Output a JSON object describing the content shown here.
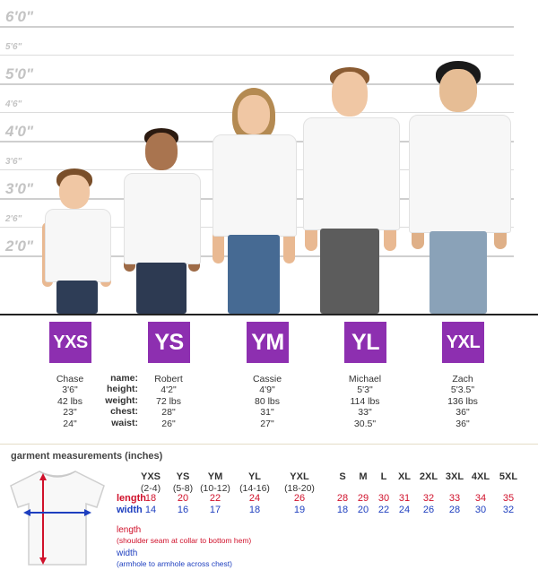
{
  "height_labels": [
    "6'0\"",
    "5'6\"",
    "5'0\"",
    "4'6\"",
    "4'0\"",
    "3'6\"",
    "3'0\"",
    "2'6\"",
    "2'0\""
  ],
  "stat_labels": [
    "name:",
    "height:",
    "weight:",
    "chest:",
    "waist:"
  ],
  "kids": [
    {
      "size": "YXS",
      "name": "Chase",
      "height": "3'6\"",
      "weight": "42 lbs",
      "chest": "23\"",
      "waist": "24\""
    },
    {
      "size": "YS",
      "name": "Robert",
      "height": "4'2\"",
      "weight": "72 lbs",
      "chest": "28\"",
      "waist": "26\""
    },
    {
      "size": "YM",
      "name": "Cassie",
      "height": "4'9\"",
      "weight": "80 lbs",
      "chest": "31\"",
      "waist": "27\""
    },
    {
      "size": "YL",
      "name": "Michael",
      "height": "5'3\"",
      "weight": "114 lbs",
      "chest": "33\"",
      "waist": "30.5\""
    },
    {
      "size": "YXL",
      "name": "Zach",
      "height": "5'3.5\"",
      "weight": "136 lbs",
      "chest": "36\"",
      "waist": "36\""
    }
  ],
  "garment": {
    "title": "garment measurements (inches)",
    "sizes": [
      "YXS",
      "YS",
      "YM",
      "YL",
      "YXL",
      "S",
      "M",
      "L",
      "XL",
      "2XL",
      "3XL",
      "4XL",
      "5XL"
    ],
    "ranges": [
      "(2-4)",
      "(5-8)",
      "(10-12)",
      "(14-16)",
      "(18-20)",
      "",
      "",
      "",
      "",
      "",
      "",
      "",
      ""
    ],
    "length_label": "length",
    "width_label": "width",
    "length": [
      "18",
      "20",
      "22",
      "24",
      "26",
      "28",
      "29",
      "30",
      "31",
      "32",
      "33",
      "34",
      "35"
    ],
    "width": [
      "14",
      "16",
      "17",
      "18",
      "19",
      "18",
      "20",
      "22",
      "24",
      "26",
      "28",
      "30",
      "32"
    ],
    "length_note_title": "length",
    "length_note": "(shoulder seam at collar to bottom hem)",
    "width_note_title": "width",
    "width_note": "(armhole to armhole across chest)",
    "colors": {
      "length": "#d0112b",
      "width": "#1e3fbf",
      "badge": "#8d2fb0"
    }
  }
}
